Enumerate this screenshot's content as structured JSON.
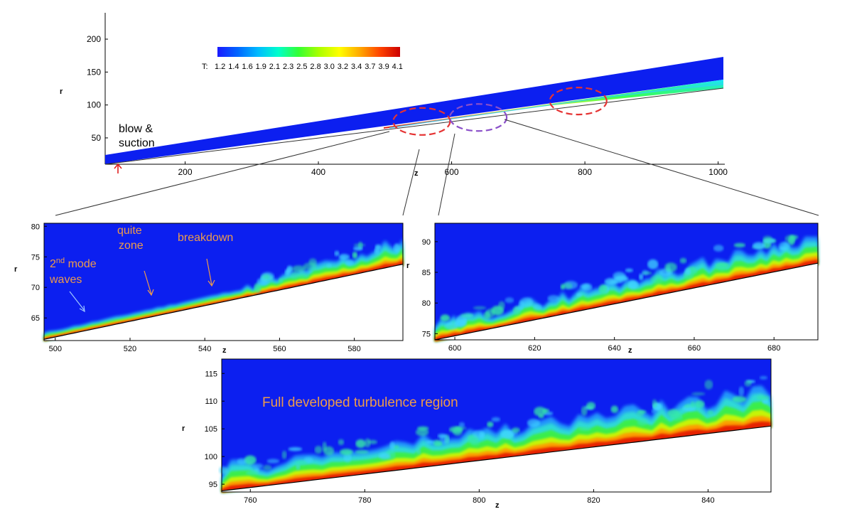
{
  "colors": {
    "background": "#0C1FF0",
    "annotation": "#ED9B4B",
    "ellipse_red": "#E53333",
    "ellipse_purple": "#8A4FC9",
    "arrow": "#E02020"
  },
  "colorbar": {
    "label": "T:",
    "ticks": [
      "1.2",
      "1.4",
      "1.6",
      "1.9",
      "2.1",
      "2.3",
      "2.5",
      "2.8",
      "3.0",
      "3.2",
      "3.4",
      "3.7",
      "3.9",
      "4.1"
    ],
    "stops": [
      "#1a1aff",
      "#0066ff",
      "#00bbff",
      "#00ffcc",
      "#33ff33",
      "#aaff00",
      "#ffff00",
      "#ffaa00",
      "#ff4400",
      "#cc0000"
    ]
  },
  "chart_data": [
    {
      "id": "overview",
      "type": "heatmap",
      "xlabel": "z",
      "ylabel": "r",
      "xticks": [
        200,
        400,
        600,
        800,
        1000
      ],
      "yticks": [
        50,
        100,
        150,
        200
      ],
      "xlim": [
        80,
        1010
      ],
      "ylim": [
        10,
        240
      ],
      "annotations": {
        "blow_suction": [
          "blow &",
          "suction"
        ]
      },
      "regions": [
        {
          "z": 555,
          "r": 75,
          "color": "red"
        },
        {
          "z": 640,
          "r": 81,
          "color": "purple"
        },
        {
          "z": 790,
          "r": 106,
          "color": "red"
        }
      ]
    },
    {
      "id": "zoom1",
      "type": "heatmap",
      "xlabel": "z",
      "ylabel": "r",
      "xticks": [
        500,
        520,
        540,
        560,
        580
      ],
      "yticks": [
        65,
        70,
        75,
        80
      ],
      "xlim": [
        497,
        593
      ],
      "ylim": [
        61.3,
        80.5
      ],
      "wall": [
        [
          497,
          61.5
        ],
        [
          593,
          73.8
        ]
      ],
      "annotations": {
        "second_mode": "2",
        "second_mode_sup": "nd",
        "second_mode_rest": " mode",
        "waves": "waves",
        "quite": "quite",
        "zone": "zone",
        "breakdown": "breakdown"
      }
    },
    {
      "id": "zoom2",
      "type": "heatmap",
      "xlabel": "z",
      "ylabel": "r",
      "xticks": [
        600,
        620,
        640,
        660,
        680
      ],
      "yticks": [
        75,
        80,
        85,
        90
      ],
      "xlim": [
        595,
        691
      ],
      "ylim": [
        74,
        93
      ],
      "wall": [
        [
          595,
          74
        ],
        [
          691,
          86.5
        ]
      ]
    },
    {
      "id": "zoom3",
      "type": "heatmap",
      "xlabel": "z",
      "ylabel": "r",
      "xticks": [
        760,
        780,
        800,
        820,
        840
      ],
      "yticks": [
        95,
        100,
        105,
        110,
        115
      ],
      "xlim": [
        755,
        851
      ],
      "ylim": [
        93.6,
        117.6
      ],
      "wall": [
        [
          755,
          93.8
        ],
        [
          851,
          105.5
        ]
      ],
      "annotations": {
        "region": "Full developed turbulence region"
      }
    }
  ]
}
